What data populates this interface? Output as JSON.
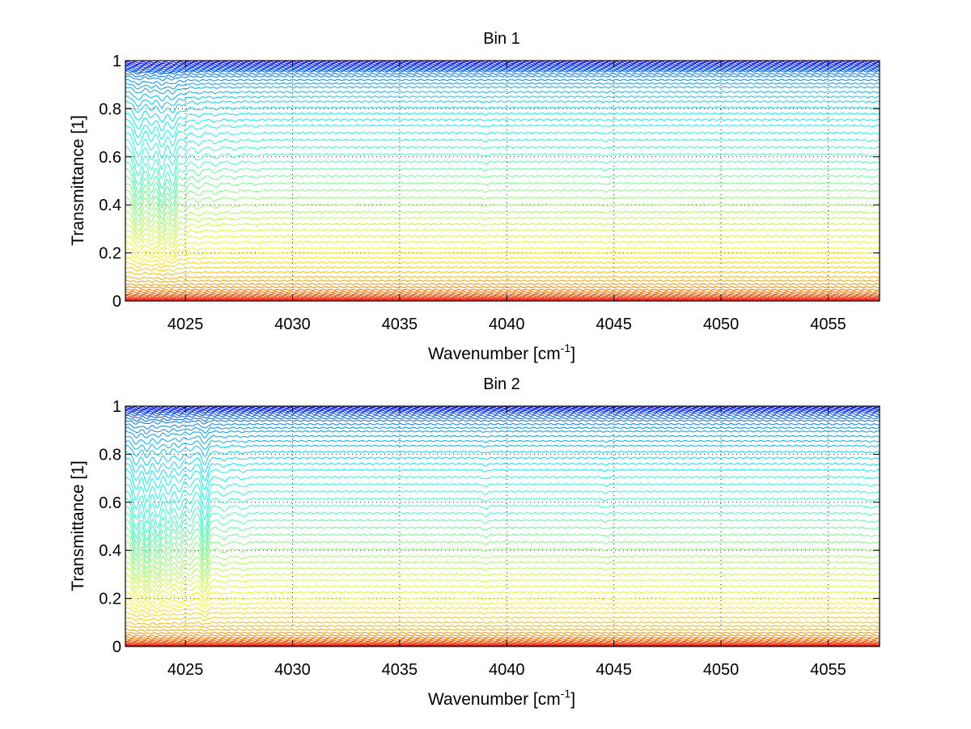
{
  "chart_data": [
    {
      "type": "line",
      "title": "Bin 1",
      "xlabel_base": "Wavenumber [cm",
      "xlabel_sup": "-1",
      "xlabel_close": "]",
      "ylabel": "Transmittance [1]",
      "xlim": [
        4022.2,
        4057.4
      ],
      "ylim": [
        0,
        1
      ],
      "xticks": [
        4025,
        4030,
        4035,
        4040,
        4045,
        4050,
        4055
      ],
      "xtick_labels": [
        "4025",
        "4030",
        "4035",
        "4040",
        "4045",
        "4050",
        "4055"
      ],
      "yticks": [
        0,
        0.2,
        0.4,
        0.6,
        0.8,
        1
      ],
      "ytick_labels": [
        "0",
        "0.2",
        "0.4",
        "0.6",
        "0.8",
        "1"
      ],
      "grid": true,
      "colormap": "jet",
      "n_series": 60,
      "series_baselines": [
        0.995,
        0.99,
        0.985,
        0.98,
        0.975,
        0.97,
        0.965,
        0.96,
        0.955,
        0.945,
        0.935,
        0.92,
        0.905,
        0.89,
        0.87,
        0.85,
        0.83,
        0.805,
        0.78,
        0.755,
        0.73,
        0.7,
        0.67,
        0.64,
        0.61,
        0.58,
        0.55,
        0.52,
        0.49,
        0.46,
        0.43,
        0.4,
        0.37,
        0.345,
        0.32,
        0.295,
        0.27,
        0.245,
        0.22,
        0.2,
        0.18,
        0.16,
        0.14,
        0.12,
        0.1,
        0.085,
        0.07,
        0.058,
        0.047,
        0.038,
        0.03,
        0.024,
        0.019,
        0.015,
        0.012,
        0.009,
        0.007,
        0.005,
        0.003,
        0.001
      ],
      "absorption_lines": [
        {
          "x": 4022.8,
          "depth": 0.9,
          "width": 0.25
        },
        {
          "x": 4023.4,
          "depth": 0.7,
          "width": 0.2
        },
        {
          "x": 4023.9,
          "depth": 1.0,
          "width": 0.22
        },
        {
          "x": 4024.4,
          "depth": 0.9,
          "width": 0.22
        },
        {
          "x": 4024.9,
          "depth": 0.3,
          "width": 0.2
        },
        {
          "x": 4025.6,
          "depth": 0.18,
          "width": 0.2
        },
        {
          "x": 4026.4,
          "depth": 0.12,
          "width": 0.2
        },
        {
          "x": 4027.3,
          "depth": 0.08,
          "width": 0.2
        },
        {
          "x": 4028.3,
          "depth": 0.05,
          "width": 0.2
        },
        {
          "x": 4039.0,
          "depth": 0.05,
          "width": 0.15
        },
        {
          "x": 4044.6,
          "depth": 0.04,
          "width": 0.15
        },
        {
          "x": 4057.0,
          "depth": 0.03,
          "width": 0.3
        }
      ]
    },
    {
      "type": "line",
      "title": "Bin 2",
      "xlabel_base": "Wavenumber [cm",
      "xlabel_sup": "-1",
      "xlabel_close": "]",
      "ylabel": "Transmittance [1]",
      "xlim": [
        4022.2,
        4057.4
      ],
      "ylim": [
        0,
        1
      ],
      "xticks": [
        4025,
        4030,
        4035,
        4040,
        4045,
        4050,
        4055
      ],
      "xtick_labels": [
        "4025",
        "4030",
        "4035",
        "4040",
        "4045",
        "4050",
        "4055"
      ],
      "yticks": [
        0,
        0.2,
        0.4,
        0.6,
        0.8,
        1
      ],
      "ytick_labels": [
        "0",
        "0.2",
        "0.4",
        "0.6",
        "0.8",
        "1"
      ],
      "grid": true,
      "colormap": "jet",
      "n_series": 60,
      "series_baselines": [
        0.997,
        0.993,
        0.989,
        0.985,
        0.98,
        0.975,
        0.968,
        0.96,
        0.95,
        0.94,
        0.925,
        0.91,
        0.895,
        0.875,
        0.855,
        0.835,
        0.81,
        0.785,
        0.76,
        0.735,
        0.705,
        0.675,
        0.645,
        0.615,
        0.585,
        0.555,
        0.525,
        0.495,
        0.465,
        0.435,
        0.405,
        0.375,
        0.35,
        0.325,
        0.3,
        0.275,
        0.25,
        0.225,
        0.2,
        0.18,
        0.16,
        0.14,
        0.12,
        0.1,
        0.085,
        0.07,
        0.057,
        0.046,
        0.037,
        0.03,
        0.024,
        0.019,
        0.015,
        0.012,
        0.009,
        0.007,
        0.005,
        0.003,
        0.002,
        0.001
      ],
      "absorption_lines": [
        {
          "x": 4022.7,
          "depth": 0.9,
          "width": 0.2
        },
        {
          "x": 4023.2,
          "depth": 1.0,
          "width": 0.2
        },
        {
          "x": 4023.7,
          "depth": 0.85,
          "width": 0.2
        },
        {
          "x": 4024.2,
          "depth": 0.7,
          "width": 0.2
        },
        {
          "x": 4024.7,
          "depth": 0.6,
          "width": 0.2
        },
        {
          "x": 4025.2,
          "depth": 0.4,
          "width": 0.2
        },
        {
          "x": 4025.9,
          "depth": 0.9,
          "width": 0.18
        },
        {
          "x": 4026.8,
          "depth": 0.15,
          "width": 0.2
        },
        {
          "x": 4027.7,
          "depth": 0.1,
          "width": 0.2
        },
        {
          "x": 4039.0,
          "depth": 0.09,
          "width": 0.15
        },
        {
          "x": 4044.6,
          "depth": 0.05,
          "width": 0.15
        },
        {
          "x": 4057.0,
          "depth": 0.05,
          "width": 0.3
        }
      ]
    }
  ]
}
